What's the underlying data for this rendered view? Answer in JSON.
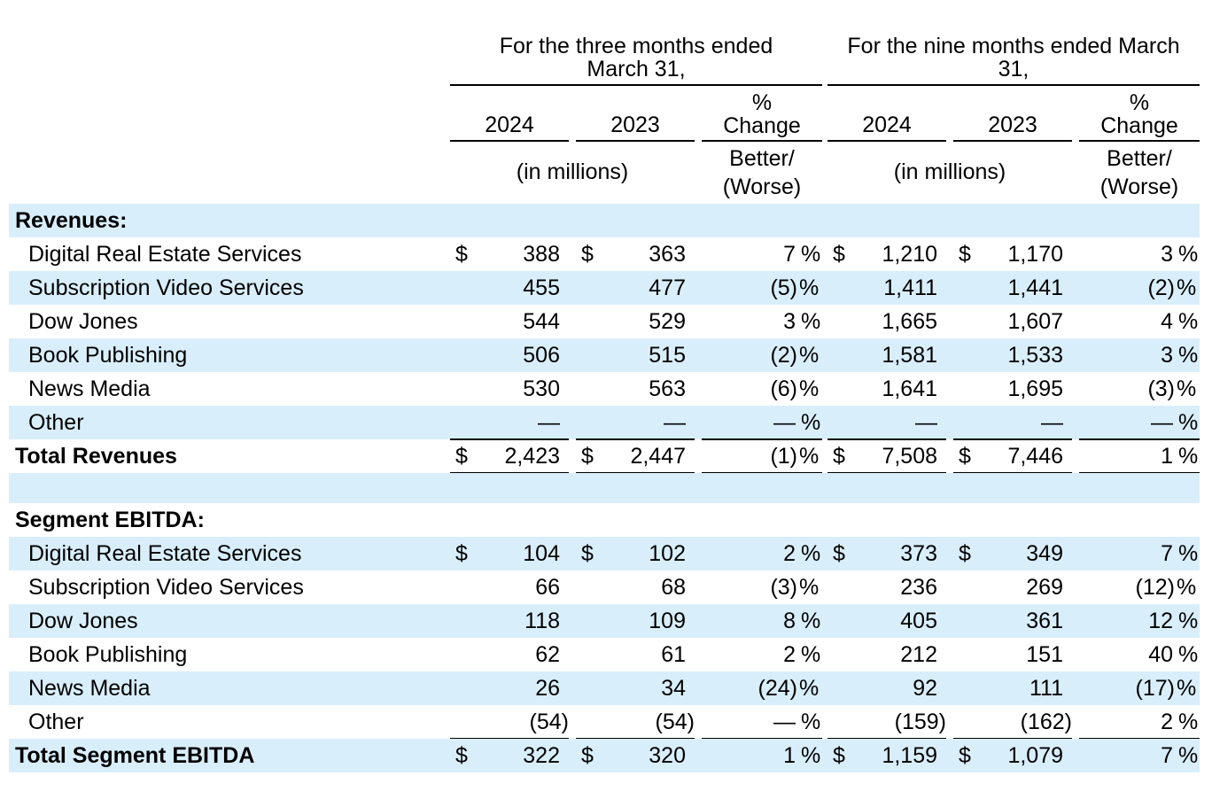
{
  "header": {
    "three_months_l1": "For the three months ended",
    "three_months_l2": "March 31,",
    "nine_months_l1": "For the nine months ended March",
    "nine_months_l2": "31,",
    "year_2024": "2024",
    "year_2023": "2023",
    "pct_l1": "%",
    "pct_l2": "Change",
    "in_millions": "(in millions)",
    "better_l1": "Better/",
    "better_l2": "(Worse)"
  },
  "currency": "$",
  "sections": {
    "revenues_title": "Revenues:",
    "ebitda_title": "Segment EBITDA:"
  },
  "revenues": [
    {
      "label": "Digital Real Estate Services",
      "q24": "388",
      "q23": "363",
      "qpct": "7",
      "qsuf": "%",
      "n24": "1,210",
      "n23": "1,170",
      "npct": "3",
      "nsuf": "%"
    },
    {
      "label": "Subscription Video Services",
      "q24": "455",
      "q23": "477",
      "qpct": "(5)",
      "qsuf": "%",
      "n24": "1,411",
      "n23": "1,441",
      "npct": "(2)",
      "nsuf": "%"
    },
    {
      "label": "Dow Jones",
      "q24": "544",
      "q23": "529",
      "qpct": "3",
      "qsuf": "%",
      "n24": "1,665",
      "n23": "1,607",
      "npct": "4",
      "nsuf": "%"
    },
    {
      "label": "Book Publishing",
      "q24": "506",
      "q23": "515",
      "qpct": "(2)",
      "qsuf": "%",
      "n24": "1,581",
      "n23": "1,533",
      "npct": "3",
      "nsuf": "%"
    },
    {
      "label": "News Media",
      "q24": "530",
      "q23": "563",
      "qpct": "(6)",
      "qsuf": "%",
      "n24": "1,641",
      "n23": "1,695",
      "npct": "(3)",
      "nsuf": "%"
    },
    {
      "label": "Other",
      "q24": "—",
      "q23": "—",
      "qpct": "—",
      "qsuf": "%",
      "n24": "—",
      "n23": "—",
      "npct": "—",
      "nsuf": "%"
    }
  ],
  "total_revenues": {
    "label": "Total Revenues",
    "q24": "2,423",
    "q23": "2,447",
    "qpct": "(1)",
    "qsuf": "%",
    "n24": "7,508",
    "n23": "7,446",
    "npct": "1",
    "nsuf": "%"
  },
  "ebitda": [
    {
      "label": "Digital Real Estate Services",
      "q24": "104",
      "q23": "102",
      "qpct": "2",
      "qsuf": "%",
      "n24": "373",
      "n23": "349",
      "npct": "7",
      "nsuf": "%"
    },
    {
      "label": "Subscription Video Services",
      "q24": "66",
      "q23": "68",
      "qpct": "(3)",
      "qsuf": "%",
      "n24": "236",
      "n23": "269",
      "npct": "(12)",
      "nsuf": "%"
    },
    {
      "label": "Dow Jones",
      "q24": "118",
      "q23": "109",
      "qpct": "8",
      "qsuf": "%",
      "n24": "405",
      "n23": "361",
      "npct": "12",
      "nsuf": "%"
    },
    {
      "label": "Book Publishing",
      "q24": "62",
      "q23": "61",
      "qpct": "2",
      "qsuf": "%",
      "n24": "212",
      "n23": "151",
      "npct": "40",
      "nsuf": "%"
    },
    {
      "label": "News Media",
      "q24": "26",
      "q23": "34",
      "qpct": "(24)",
      "qsuf": "%",
      "n24": "92",
      "n23": "111",
      "npct": "(17)",
      "nsuf": "%"
    },
    {
      "label": "Other",
      "q24": "(54)",
      "q23": "(54)",
      "qpct": "—",
      "qsuf": "%",
      "n24": "(159)",
      "n23": "(162)",
      "npct": "2",
      "nsuf": "%"
    }
  ],
  "total_ebitda": {
    "label": "Total Segment EBITDA",
    "q24": "322",
    "q23": "320",
    "qpct": "1",
    "qsuf": "%",
    "n24": "1,159",
    "n23": "1,079",
    "npct": "7",
    "nsuf": "%"
  },
  "colors": {
    "row_shade": "#d9eefb"
  }
}
